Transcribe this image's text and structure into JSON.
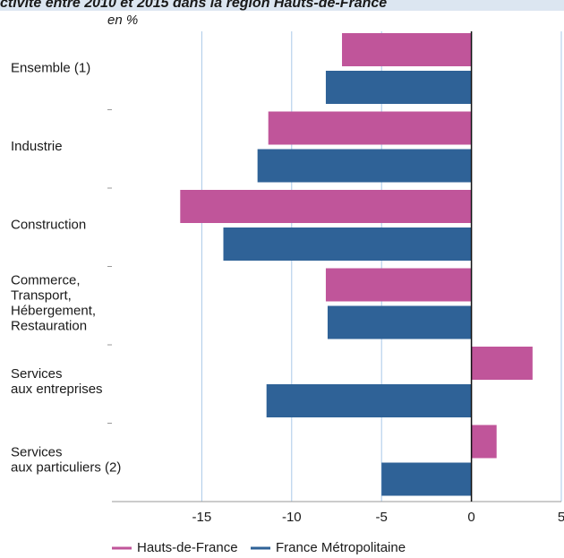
{
  "chart_data": {
    "type": "hbar",
    "title": "ctivité entre 2010 et 2015 dans la région Hauts-de-France",
    "unit_label": "en %",
    "categories": [
      [
        "Ensemble (1)"
      ],
      [
        "Industrie"
      ],
      [
        "Construction"
      ],
      [
        "Commerce,",
        "Transport,",
        "Hébergement,",
        "Restauration"
      ],
      [
        "Services",
        "aux entreprises"
      ],
      [
        "Services",
        "aux particuliers (2)"
      ]
    ],
    "series": [
      {
        "name": "Hauts-de-France",
        "color": "#c0559a",
        "values": [
          -7.2,
          -11.3,
          -16.2,
          -8.1,
          3.4,
          1.4
        ]
      },
      {
        "name": "France Métropolitaine",
        "color": "#2f6297",
        "values": [
          -8.1,
          -11.9,
          -13.8,
          -8.0,
          -11.4,
          -5.0
        ]
      }
    ],
    "xlim": [
      -20,
      5
    ],
    "xticks": [
      -15,
      -10,
      -5,
      0,
      5
    ],
    "grid": true
  }
}
